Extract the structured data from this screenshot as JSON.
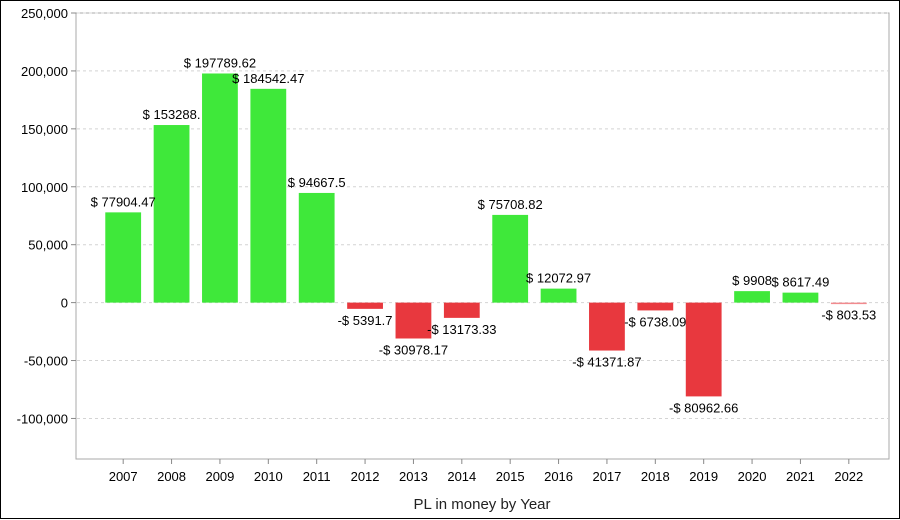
{
  "chart_data": {
    "type": "bar",
    "xlabel": "PL in money by Year",
    "ylabel": "",
    "ylim": [
      -135000,
      250000
    ],
    "y_ticks": [
      250000,
      200000,
      150000,
      100000,
      50000,
      0,
      -50000,
      -100000
    ],
    "y_tick_labels": [
      "250,000",
      "200,000",
      "150,000",
      "100,000",
      "50,000",
      "0",
      "-50,000",
      "-100,000"
    ],
    "grid": "horizontal dashed",
    "categories": [
      "2007",
      "2008",
      "2009",
      "2010",
      "2011",
      "2012",
      "2013",
      "2014",
      "2015",
      "2016",
      "2017",
      "2018",
      "2019",
      "2020",
      "2021",
      "2022"
    ],
    "values": [
      77904.47,
      153288,
      197789.62,
      184542.47,
      94667.5,
      -5391.7,
      -30978.17,
      -13173.33,
      75708.82,
      12072.97,
      -41371.87,
      -6738.09,
      -80962.66,
      9908,
      8617.49,
      -803.53
    ],
    "data_labels": [
      "$ 77904.47",
      "$ 153288.",
      "$ 197789.62",
      "$ 184542.47",
      "$ 94667.5",
      "-$ 5391.7",
      "-$ 30978.17",
      "-$ 13173.33",
      "$ 75708.82",
      "$ 12072.97",
      "-$ 41371.87",
      "-$ 6738.09",
      "-$ 80962.66",
      "$ 9908",
      "$ 8617.49",
      "-$ 803.53"
    ],
    "colors": {
      "positive": "#3fe83a",
      "negative": "#e8383e",
      "negative_small": "#f28a8e"
    }
  }
}
